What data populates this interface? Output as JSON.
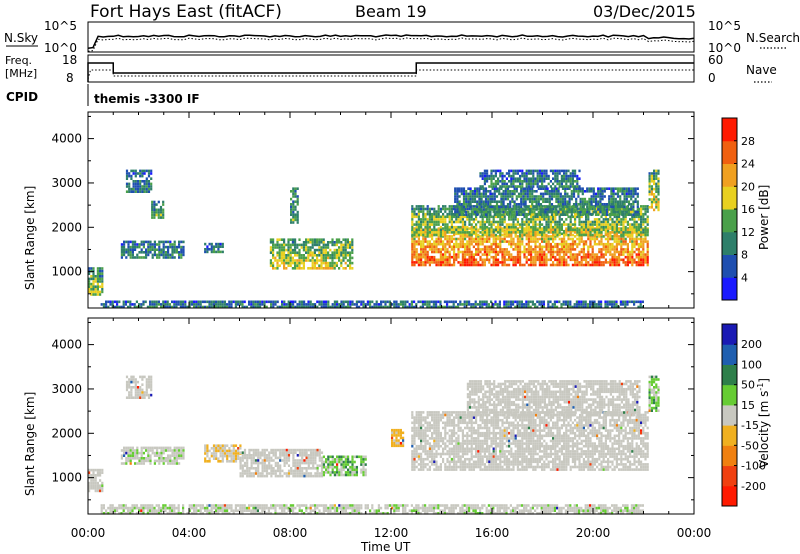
{
  "header": {
    "station": "Fort Hays East (fitACF)",
    "beam": "Beam 19",
    "date": "03/Dec/2015"
  },
  "panels": {
    "sky": {
      "left_label": "N.Sky",
      "right_label": "N.Search",
      "left_ticks": [
        "10^5",
        "10^0"
      ],
      "right_ticks": [
        "10^5",
        "10^0"
      ]
    },
    "freq": {
      "left_label_1": "Freq.",
      "left_label_2": "[MHz]",
      "right_label": "Nave",
      "left_ticks": [
        "18",
        "8"
      ],
      "right_ticks": [
        "60",
        "0"
      ]
    },
    "cpid": {
      "label": "CPID",
      "value": "themis -3300 IF"
    }
  },
  "chart_data": [
    {
      "type": "heatmap",
      "title": "Power [dB]",
      "xlabel": "Time UT",
      "ylabel": "Slant Range [km]",
      "x_ticks": [
        "00:00",
        "04:00",
        "08:00",
        "12:00",
        "16:00",
        "20:00",
        "00:00"
      ],
      "y_ticks": [
        1000,
        2000,
        3000,
        4000
      ],
      "ylim": [
        180,
        4600
      ],
      "colorbar": {
        "label": "Power [dB]",
        "ticks": [
          "4",
          "8",
          "12",
          "16",
          "20",
          "24",
          "28"
        ],
        "colors": [
          "#1a1aff",
          "#1f4fb0",
          "#2e7f6a",
          "#4aa04a",
          "#e8d020",
          "#f0a020",
          "#f06010",
          "#ff1a00"
        ]
      },
      "regions": [
        {
          "t0": 1.3,
          "t1": 3.8,
          "r0": 1300,
          "r1": 1700,
          "level": 0.35
        },
        {
          "t0": 4.6,
          "t1": 5.3,
          "r0": 1450,
          "r1": 1650,
          "level": 0.3
        },
        {
          "t0": 7.2,
          "t1": 10.5,
          "r0": 1050,
          "r1": 1750,
          "level": 0.6
        },
        {
          "t0": 12.8,
          "t1": 22.2,
          "r0": 1150,
          "r1": 2000,
          "level": 0.9
        },
        {
          "t0": 12.8,
          "t1": 22.2,
          "r0": 1800,
          "r1": 2500,
          "level": 0.55
        },
        {
          "t0": 14.5,
          "t1": 21.8,
          "r0": 2300,
          "r1": 2900,
          "level": 0.35
        },
        {
          "t0": 22.2,
          "t1": 22.6,
          "r0": 2400,
          "r1": 3300,
          "level": 0.6
        },
        {
          "t0": 1.5,
          "t1": 2.5,
          "r0": 2800,
          "r1": 3300,
          "level": 0.3
        },
        {
          "t0": 2.5,
          "t1": 3.0,
          "r0": 2200,
          "r1": 2600,
          "level": 0.45
        },
        {
          "t0": 8.0,
          "t1": 8.3,
          "r0": 2100,
          "r1": 2900,
          "level": 0.4
        },
        {
          "t0": 0.0,
          "t1": 0.6,
          "r0": 500,
          "r1": 1100,
          "level": 0.5
        },
        {
          "t0": 15.5,
          "t1": 19.5,
          "r0": 2900,
          "r1": 3300,
          "level": 0.3
        },
        {
          "t0": 0.5,
          "t1": 22.0,
          "r0": 200,
          "r1": 350,
          "level": 0.3
        }
      ]
    },
    {
      "type": "heatmap",
      "title": "Velocity [m s^-1]",
      "xlabel": "Time UT",
      "ylabel": "Slant Range [km]",
      "x_ticks": [
        "00:00",
        "04:00",
        "08:00",
        "12:00",
        "16:00",
        "20:00",
        "00:00"
      ],
      "y_ticks": [
        1000,
        2000,
        3000,
        4000
      ],
      "ylim": [
        180,
        4600
      ],
      "colorbar": {
        "label": "Velocity [m s^-1]",
        "ticks": [
          "200",
          "100",
          "50",
          "15",
          "-15",
          "-50",
          "-100",
          "-200"
        ],
        "colors": [
          "#1a1ab4",
          "#1f5fb0",
          "#2e7f4a",
          "#66cc33",
          "#c8c8c0",
          "#f0b020",
          "#f08010",
          "#f04010",
          "#ff1a00"
        ]
      },
      "regions": [
        {
          "t0": 1.3,
          "t1": 3.8,
          "r0": 1300,
          "r1": 1700,
          "level": 0.55
        },
        {
          "t0": 4.6,
          "t1": 6.0,
          "r0": 1350,
          "r1": 1750,
          "level": 0.35
        },
        {
          "t0": 6.0,
          "t1": 9.3,
          "r0": 1050,
          "r1": 1650,
          "level": 0.5
        },
        {
          "t0": 9.3,
          "t1": 11.0,
          "r0": 1050,
          "r1": 1500,
          "level": 0.7
        },
        {
          "t0": 12.8,
          "t1": 22.2,
          "r0": 1200,
          "r1": 2500,
          "level": 0.5
        },
        {
          "t0": 15.0,
          "t1": 21.8,
          "r0": 2400,
          "r1": 3200,
          "level": 0.5
        },
        {
          "t0": 22.2,
          "t1": 22.6,
          "r0": 2500,
          "r1": 3300,
          "level": 0.7
        },
        {
          "t0": 1.5,
          "t1": 2.5,
          "r0": 2800,
          "r1": 3300,
          "level": 0.5
        },
        {
          "t0": 12.0,
          "t1": 12.5,
          "r0": 1700,
          "r1": 2100,
          "level": 0.2
        },
        {
          "t0": 0.0,
          "t1": 0.6,
          "r0": 700,
          "r1": 1200,
          "level": 0.5
        },
        {
          "t0": 0.5,
          "t1": 22.0,
          "r0": 200,
          "r1": 400,
          "level": 0.55
        }
      ]
    }
  ],
  "colors": {
    "axis": "#000000",
    "background": "#ffffff"
  }
}
